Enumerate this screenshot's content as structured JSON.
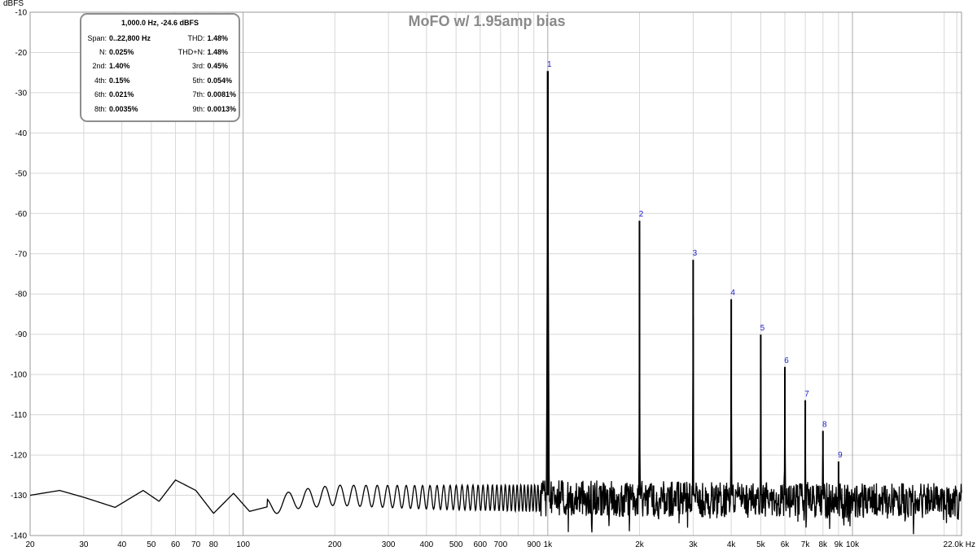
{
  "chart_data": {
    "type": "line",
    "title": "MoFO w/ 1.95amp bias",
    "y_unit": "dBFS",
    "x_unit": "Hz",
    "x_scale": "log",
    "xlim": [
      20,
      22800
    ],
    "ylim": [
      -140,
      -10
    ],
    "grid": true,
    "y_ticks": [
      -10,
      -20,
      -30,
      -40,
      -50,
      -60,
      -70,
      -80,
      -90,
      -100,
      -110,
      -120,
      -130,
      -140
    ],
    "x_ticks": [
      {
        "value": 20,
        "label": "20"
      },
      {
        "value": 30,
        "label": "30"
      },
      {
        "value": 40,
        "label": "40"
      },
      {
        "value": 50,
        "label": "50"
      },
      {
        "value": 60,
        "label": "60"
      },
      {
        "value": 70,
        "label": "70"
      },
      {
        "value": 80,
        "label": "80"
      },
      {
        "value": 100,
        "label": "100"
      },
      {
        "value": 200,
        "label": "200"
      },
      {
        "value": 300,
        "label": "300"
      },
      {
        "value": 400,
        "label": "400"
      },
      {
        "value": 500,
        "label": "500"
      },
      {
        "value": 600,
        "label": "600"
      },
      {
        "value": 700,
        "label": "700"
      },
      {
        "value": 900,
        "label": "900"
      },
      {
        "value": 1000,
        "label": "1k"
      },
      {
        "value": 2000,
        "label": "2k"
      },
      {
        "value": 3000,
        "label": "3k"
      },
      {
        "value": 4000,
        "label": "4k"
      },
      {
        "value": 5000,
        "label": "5k"
      },
      {
        "value": 6000,
        "label": "6k"
      },
      {
        "value": 7000,
        "label": "7k"
      },
      {
        "value": 8000,
        "label": "8k"
      },
      {
        "value": 9000,
        "label": "9k"
      },
      {
        "value": 10000,
        "label": "10k"
      },
      {
        "value": 22000,
        "label": "22.0k Hz"
      }
    ],
    "harmonics": [
      {
        "label": "1",
        "x": 1000,
        "y": -24.6
      },
      {
        "label": "2",
        "x": 2000,
        "y": -61.8
      },
      {
        "label": "3",
        "x": 3000,
        "y": -71.5
      },
      {
        "label": "4",
        "x": 4000,
        "y": -81.3
      },
      {
        "label": "5",
        "x": 5000,
        "y": -90.1
      },
      {
        "label": "6",
        "x": 6000,
        "y": -98.1
      },
      {
        "label": "7",
        "x": 7000,
        "y": -106.4
      },
      {
        "label": "8",
        "x": 8000,
        "y": -114.0
      },
      {
        "label": "9",
        "x": 9000,
        "y": -121.6
      }
    ],
    "noise_floor": [
      {
        "x": 20,
        "y": -130
      },
      {
        "x": 25,
        "y": -128.8
      },
      {
        "x": 30,
        "y": -130.5
      },
      {
        "x": 38,
        "y": -133
      },
      {
        "x": 47,
        "y": -128.8
      },
      {
        "x": 53,
        "y": -131.5
      },
      {
        "x": 60,
        "y": -126.2
      },
      {
        "x": 70,
        "y": -128.8
      },
      {
        "x": 80,
        "y": -134.5
      },
      {
        "x": 93,
        "y": -129.5
      },
      {
        "x": 105,
        "y": -134
      },
      {
        "x": 150,
        "y": -131
      },
      {
        "x": 200,
        "y": -130
      },
      {
        "x": 400,
        "y": -130.5
      },
      {
        "x": 22800,
        "y": -131.5
      }
    ]
  },
  "infobox": {
    "header": "1,000.0 Hz, -24.6 dBFS",
    "rows": [
      [
        {
          "label": "Span:",
          "value": "0..22,800 Hz"
        },
        {
          "label": "THD:",
          "value": "1.48%"
        }
      ],
      [
        {
          "label": "N:",
          "value": "0.025%"
        },
        {
          "label": "THD+N:",
          "value": "1.48%"
        }
      ],
      [
        {
          "label": "2nd:",
          "value": "1.40%"
        },
        {
          "label": "3rd:",
          "value": "0.45%"
        }
      ],
      [
        {
          "label": "4th:",
          "value": "0.15%"
        },
        {
          "label": "5th:",
          "value": "0.054%"
        }
      ],
      [
        {
          "label": "6th:",
          "value": "0.021%"
        },
        {
          "label": "7th:",
          "value": "0.0081%"
        }
      ],
      [
        {
          "label": "8th:",
          "value": "0.0035%"
        },
        {
          "label": "9th:",
          "value": "0.0013%"
        }
      ]
    ]
  },
  "colors": {
    "trace": "#000000",
    "harmonic_label": "#1a1acc",
    "title": "#8a8a8a",
    "grid": "#d7d7d7",
    "grid_decade": "#a9a9a9"
  }
}
